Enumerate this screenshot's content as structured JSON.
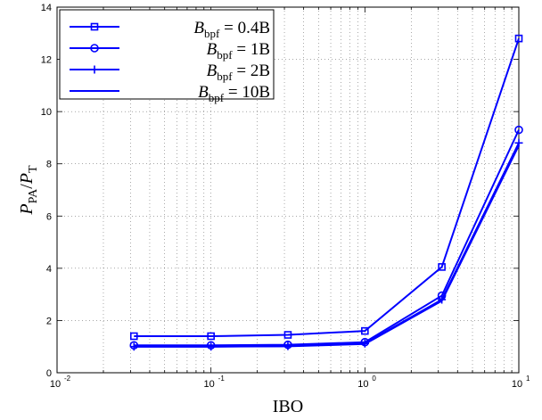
{
  "chart_data": {
    "type": "line",
    "xscale": "log",
    "xlim": [
      0.01,
      10
    ],
    "ylim": [
      0,
      14
    ],
    "xlabel": "IBO",
    "ylabel": "P_PA/P_T",
    "ylabel_parts": {
      "p1": "P",
      "s1": "PA",
      "slash": "/",
      "p2": "P",
      "s2": "T"
    },
    "x_ticks": [
      {
        "value": 0.01,
        "base": "10",
        "exp": "-2"
      },
      {
        "value": 0.1,
        "base": "10",
        "exp": "-1"
      },
      {
        "value": 1,
        "base": "10",
        "exp": "0"
      },
      {
        "value": 10,
        "base": "10",
        "exp": "1"
      }
    ],
    "y_ticks": [
      "0",
      "2",
      "4",
      "6",
      "8",
      "10",
      "12",
      "14"
    ],
    "grid": true,
    "legend_position": "top-left",
    "color": "#0000ff",
    "x": [
      0.0316,
      0.1,
      0.316,
      1,
      3.16,
      10
    ],
    "series": [
      {
        "name": "B_bpf = 0.4B",
        "label": {
          "pre": "B",
          "sub": "bpf",
          "post": " = 0.4B"
        },
        "marker": "square",
        "values": [
          1.4,
          1.4,
          1.45,
          1.6,
          4.05,
          12.8
        ]
      },
      {
        "name": "B_bpf = 1B",
        "label": {
          "pre": "B",
          "sub": "bpf",
          "post": " = 1B"
        },
        "marker": "circle",
        "values": [
          1.05,
          1.05,
          1.07,
          1.17,
          2.95,
          9.3
        ]
      },
      {
        "name": "B_bpf = 2B",
        "label": {
          "pre": "B",
          "sub": "bpf",
          "post": " = 2B"
        },
        "marker": "plus",
        "values": [
          1.0,
          1.0,
          1.02,
          1.12,
          2.8,
          8.8
        ]
      },
      {
        "name": "B_bpf = 10B",
        "label": {
          "pre": "B",
          "sub": "bpf",
          "post": " = 10B"
        },
        "marker": "none",
        "values": [
          1.0,
          1.0,
          1.01,
          1.1,
          2.75,
          8.7
        ]
      }
    ]
  }
}
